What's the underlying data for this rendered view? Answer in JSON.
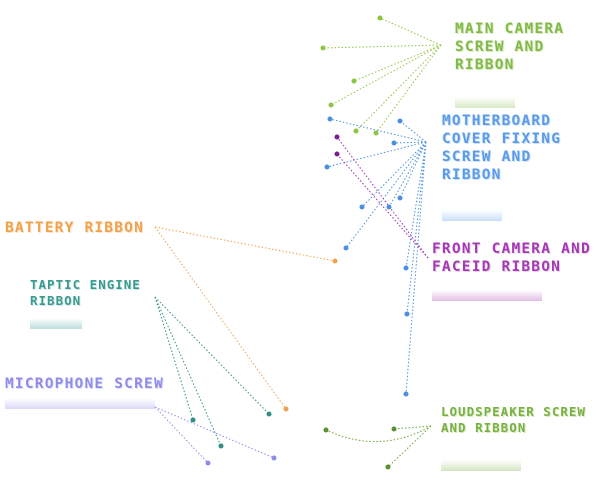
{
  "labels": {
    "main_camera": "MAIN CAMERA\nSCREW AND\nRIBBON",
    "motherboard": "MOTHERBOARD\nCOVER FIXING\nSCREW AND\nRIBBON",
    "front_camera": "FRONT CAMERA AND\nFACEID RIBBON",
    "battery": "BATTERY RIBBON",
    "taptic": "TAPTIC ENGINE\nRIBBON",
    "microphone": "MICROPHONE SCREW",
    "loudspeaker": "LOUDSPEAKER SCREW\nAND RIBBON"
  },
  "colors": {
    "main_camera": "#83b94a",
    "motherboard": "#5b9be6",
    "front_camera": "#a43ab2",
    "battery": "#f0a24e",
    "taptic": "#3b9a90",
    "microphone": "#8f8ce8",
    "loudspeaker": "#79b043"
  }
}
